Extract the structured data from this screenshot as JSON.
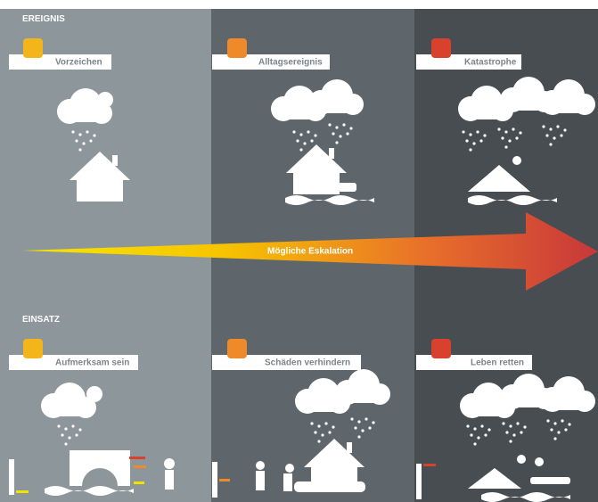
{
  "sections": [
    {
      "title": "EREIGNIS",
      "items": [
        {
          "label": "Vorzeichen"
        },
        {
          "label": "Alltagsereignis"
        },
        {
          "label": "Katastrophe"
        }
      ]
    },
    {
      "title": "EINSATZ",
      "items": [
        {
          "label": "Aufmerksam sein"
        },
        {
          "label": "Schäden verhindern"
        },
        {
          "label": "Leben retten"
        }
      ]
    }
  ],
  "arrow": {
    "label": "Mögliche Eskalation"
  }
}
